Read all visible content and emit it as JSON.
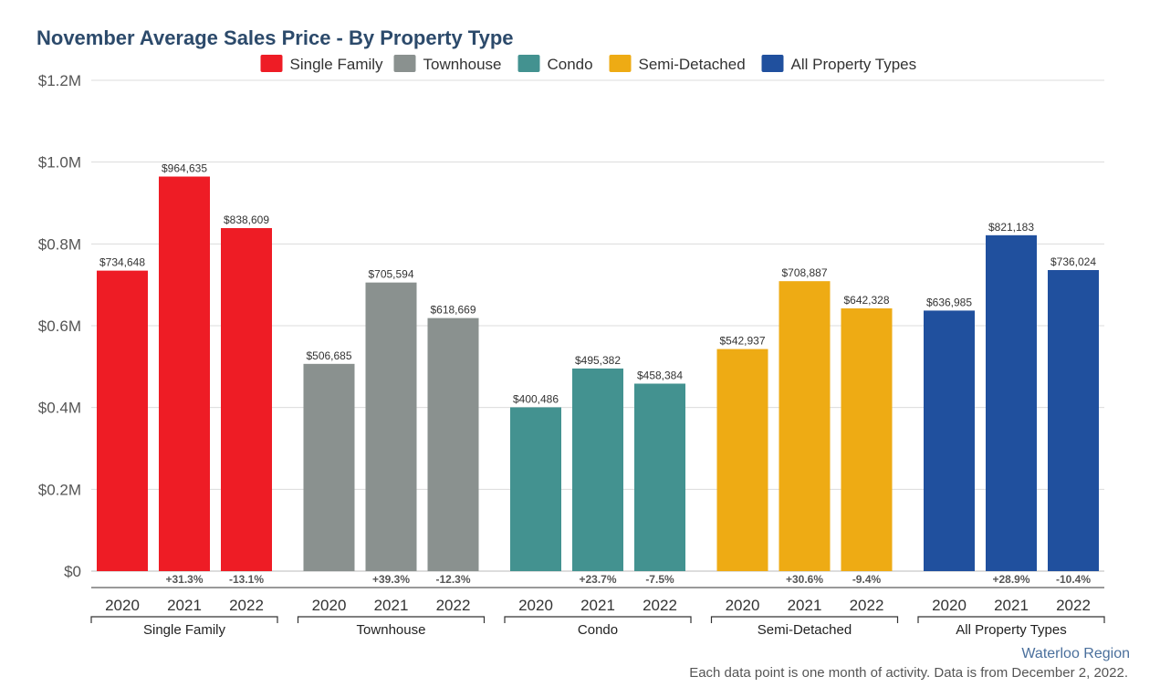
{
  "chart_data": {
    "type": "bar",
    "title": "November Average Sales Price - By Property Type",
    "ylim": [
      0,
      1200000
    ],
    "yticks": [
      {
        "value": 0,
        "label": "$0"
      },
      {
        "value": 200000,
        "label": "$0.2M"
      },
      {
        "value": 400000,
        "label": "$0.4M"
      },
      {
        "value": 600000,
        "label": "$0.6M"
      },
      {
        "value": 800000,
        "label": "$0.8M"
      },
      {
        "value": 1000000,
        "label": "$1.0M"
      },
      {
        "value": 1200000,
        "label": "$1.2M"
      }
    ],
    "grid": true,
    "legend_position": "top-center",
    "years": [
      "2020",
      "2021",
      "2022"
    ],
    "groups": [
      {
        "name": "Single Family",
        "color": "#ee1c25",
        "values": [
          734648,
          964635,
          838609
        ],
        "value_labels": [
          "$734,648",
          "$964,635",
          "$838,609"
        ],
        "changes": [
          "",
          "+31.3%",
          "-13.1%"
        ]
      },
      {
        "name": "Townhouse",
        "color": "#8a918f",
        "values": [
          506685,
          705594,
          618669
        ],
        "value_labels": [
          "$506,685",
          "$705,594",
          "$618,669"
        ],
        "changes": [
          "",
          "+39.3%",
          "-12.3%"
        ]
      },
      {
        "name": "Condo",
        "color": "#439290",
        "values": [
          400486,
          495382,
          458384
        ],
        "value_labels": [
          "$400,486",
          "$495,382",
          "$458,384"
        ],
        "changes": [
          "",
          "+23.7%",
          "-7.5%"
        ]
      },
      {
        "name": "Semi-Detached",
        "color": "#eeab14",
        "values": [
          542937,
          708887,
          642328
        ],
        "value_labels": [
          "$542,937",
          "$708,887",
          "$642,328"
        ],
        "changes": [
          "",
          "+30.6%",
          "-9.4%"
        ]
      },
      {
        "name": "All Property Types",
        "color": "#20509e",
        "values": [
          636985,
          821183,
          736024
        ],
        "value_labels": [
          "$636,985",
          "$821,183",
          "$736,024"
        ],
        "changes": [
          "",
          "+28.9%",
          "-10.4%"
        ]
      }
    ]
  },
  "footer": {
    "region": "Waterloo Region",
    "note": "Each data point is one month of activity. Data is from December 2, 2022."
  }
}
